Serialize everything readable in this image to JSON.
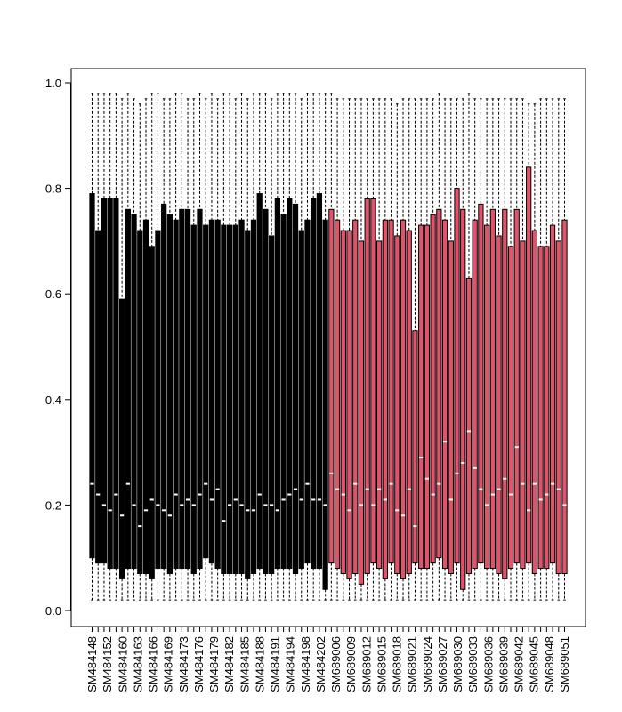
{
  "chart_data": {
    "type": "boxplot",
    "title": "",
    "xlabel": "",
    "ylabel": "",
    "ylim": [
      0,
      1
    ],
    "yticks": [
      "0.0",
      "0.2",
      "0.4",
      "0.6",
      "0.8",
      "1.0"
    ],
    "groups": [
      {
        "name": "SM484",
        "color": "#000000",
        "count": 40
      },
      {
        "name": "SM689",
        "color": "#DF536B",
        "count": 40
      }
    ],
    "tick_labels": [
      "SM484148",
      "SM484152",
      "SM484160",
      "SM484163",
      "SM484166",
      "SM484169",
      "SM484173",
      "SM484176",
      "SM484179",
      "SM484182",
      "SM484185",
      "SM484188",
      "SM484191",
      "SM484194",
      "SM484198",
      "SM484202",
      "SM689006",
      "SM689009",
      "SM689012",
      "SM689015",
      "SM689018",
      "SM689021",
      "SM689024",
      "SM689027",
      "SM689030",
      "SM689033",
      "SM689036",
      "SM689039",
      "SM689042",
      "SM689045",
      "SM689048",
      "SM689051"
    ],
    "boxes": {
      "q3": [
        0.79,
        0.72,
        0.78,
        0.78,
        0.78,
        0.59,
        0.76,
        0.75,
        0.72,
        0.74,
        0.69,
        0.72,
        0.77,
        0.75,
        0.74,
        0.76,
        0.76,
        0.73,
        0.76,
        0.73,
        0.74,
        0.74,
        0.73,
        0.73,
        0.73,
        0.74,
        0.72,
        0.74,
        0.79,
        0.76,
        0.71,
        0.78,
        0.75,
        0.78,
        0.77,
        0.72,
        0.74,
        0.78,
        0.79,
        0.74,
        0.76,
        0.74,
        0.72,
        0.72,
        0.74,
        0.7,
        0.78,
        0.78,
        0.7,
        0.74,
        0.74,
        0.71,
        0.74,
        0.72,
        0.53,
        0.73,
        0.73,
        0.75,
        0.76,
        0.74,
        0.7,
        0.8,
        0.76,
        0.63,
        0.74,
        0.77,
        0.73,
        0.76,
        0.71,
        0.76,
        0.69,
        0.76,
        0.7,
        0.84,
        0.72,
        0.69,
        0.69,
        0.73,
        0.7,
        0.74
      ],
      "median": [
        0.24,
        0.22,
        0.2,
        0.19,
        0.22,
        0.18,
        0.24,
        0.2,
        0.16,
        0.19,
        0.21,
        0.2,
        0.19,
        0.18,
        0.22,
        0.2,
        0.21,
        0.2,
        0.22,
        0.24,
        0.21,
        0.23,
        0.17,
        0.2,
        0.21,
        0.2,
        0.19,
        0.19,
        0.22,
        0.2,
        0.2,
        0.19,
        0.21,
        0.22,
        0.23,
        0.21,
        0.24,
        0.21,
        0.21,
        0.2,
        0.26,
        0.23,
        0.22,
        0.19,
        0.24,
        0.2,
        0.23,
        0.2,
        0.23,
        0.21,
        0.24,
        0.19,
        0.18,
        0.23,
        0.16,
        0.29,
        0.25,
        0.22,
        0.24,
        0.32,
        0.21,
        0.26,
        0.28,
        0.34,
        0.27,
        0.23,
        0.2,
        0.22,
        0.23,
        0.25,
        0.22,
        0.31,
        0.24,
        0.19,
        0.24,
        0.21,
        0.22,
        0.24,
        0.23,
        0.2
      ],
      "q1": [
        0.1,
        0.09,
        0.09,
        0.08,
        0.08,
        0.06,
        0.08,
        0.08,
        0.07,
        0.07,
        0.06,
        0.08,
        0.08,
        0.07,
        0.08,
        0.08,
        0.08,
        0.07,
        0.08,
        0.1,
        0.09,
        0.08,
        0.07,
        0.07,
        0.07,
        0.07,
        0.06,
        0.07,
        0.08,
        0.07,
        0.07,
        0.08,
        0.08,
        0.08,
        0.07,
        0.08,
        0.09,
        0.08,
        0.08,
        0.04,
        0.09,
        0.08,
        0.07,
        0.06,
        0.07,
        0.05,
        0.07,
        0.09,
        0.08,
        0.06,
        0.09,
        0.07,
        0.06,
        0.07,
        0.09,
        0.08,
        0.08,
        0.09,
        0.1,
        0.08,
        0.07,
        0.09,
        0.04,
        0.07,
        0.08,
        0.09,
        0.08,
        0.08,
        0.07,
        0.06,
        0.08,
        0.09,
        0.08,
        0.09,
        0.07,
        0.08,
        0.08,
        0.09,
        0.07,
        0.07
      ],
      "lower_whisker": [
        0.02,
        0.02,
        0.02,
        0.02,
        0.02,
        0.02,
        0.02,
        0.02,
        0.02,
        0.02,
        0.02,
        0.02,
        0.02,
        0.02,
        0.02,
        0.02,
        0.02,
        0.02,
        0.02,
        0.02,
        0.02,
        0.02,
        0.02,
        0.02,
        0.02,
        0.02,
        0.02,
        0.02,
        0.02,
        0.02,
        0.02,
        0.02,
        0.02,
        0.02,
        0.02,
        0.02,
        0.02,
        0.02,
        0.02,
        0.02,
        0.02,
        0.02,
        0.02,
        0.02,
        0.02,
        0.02,
        0.02,
        0.02,
        0.02,
        0.02,
        0.02,
        0.02,
        0.02,
        0.02,
        0.02,
        0.02,
        0.02,
        0.02,
        0.02,
        0.02,
        0.02,
        0.02,
        0.02,
        0.02,
        0.02,
        0.02,
        0.02,
        0.02,
        0.02,
        0.02,
        0.02,
        0.02,
        0.02,
        0.02,
        0.02,
        0.02,
        0.02,
        0.02,
        0.02,
        0.02
      ],
      "upper_whisker": [
        0.98,
        0.98,
        0.98,
        0.98,
        0.98,
        0.97,
        0.98,
        0.97,
        0.96,
        0.97,
        0.98,
        0.98,
        0.97,
        0.97,
        0.98,
        0.98,
        0.97,
        0.97,
        0.98,
        0.97,
        0.98,
        0.97,
        0.98,
        0.98,
        0.97,
        0.98,
        0.97,
        0.98,
        0.98,
        0.98,
        0.97,
        0.98,
        0.98,
        0.98,
        0.98,
        0.97,
        0.98,
        0.98,
        0.98,
        0.98,
        0.98,
        0.97,
        0.97,
        0.97,
        0.97,
        0.97,
        0.97,
        0.97,
        0.97,
        0.97,
        0.97,
        0.96,
        0.97,
        0.97,
        0.97,
        0.97,
        0.97,
        0.97,
        0.98,
        0.97,
        0.97,
        0.97,
        0.97,
        0.98,
        0.97,
        0.97,
        0.97,
        0.97,
        0.97,
        0.97,
        0.97,
        0.97,
        0.97,
        0.96,
        0.96,
        0.97,
        0.97,
        0.97,
        0.97,
        0.97
      ]
    },
    "legend": "none",
    "grid": false
  }
}
